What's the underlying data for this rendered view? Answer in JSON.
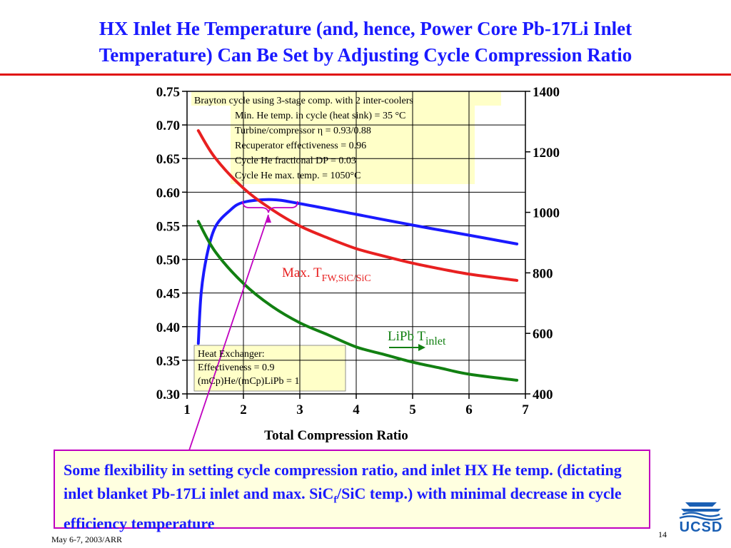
{
  "slide": {
    "title_line1": "HX Inlet He Temperature (and, hence, Power Core Pb-17Li Inlet",
    "title_line2": "Temperature) Can Be Set by Adjusting Cycle Compression Ratio",
    "callout_part1": "Some flexibility in setting cycle compression ratio, and inlet HX He temp. (dictating inlet blanket Pb-17Li inlet and max. SiC",
    "callout_sub": "f",
    "callout_part2": "/SiC temp.) with minimal decrease in cycle efficiency temperature",
    "footer_date": "May 6-7, 2003/ARR",
    "page_number": "14",
    "logo_text": "UCSD"
  },
  "colors": {
    "title": "#1a1aff",
    "rule": "#e01010",
    "efficiency": "#1a1aff",
    "max_temp": "#e82020",
    "inlet_temp": "#128012",
    "annotation_box": "#ffffc8",
    "callout_border": "#c000c0",
    "callout_fill": "#ffffe0",
    "pointer": "#c000c0"
  },
  "chart_data": {
    "type": "line",
    "xlabel": "Total Compression Ratio",
    "xlim": [
      1,
      7
    ],
    "x_ticks": [
      1,
      2,
      3,
      4,
      5,
      6,
      7
    ],
    "y_left_lim": [
      0.3,
      0.75
    ],
    "y_left_ticks": [
      "0.30",
      "0.35",
      "0.40",
      "0.45",
      "0.50",
      "0.55",
      "0.60",
      "0.65",
      "0.70",
      "0.75"
    ],
    "y_right_lim": [
      400,
      1400
    ],
    "y_right_ticks": [
      "400",
      "600",
      "800",
      "1000",
      "1200",
      "1400"
    ],
    "grid": true,
    "series": [
      {
        "axis": "left",
        "color": "#1a1aff",
        "x": [
          1.2,
          1.25,
          1.35,
          1.5,
          1.75,
          2.0,
          2.5,
          3.0,
          4.0,
          5.0,
          6.0,
          6.85
        ],
        "y": [
          0.375,
          0.45,
          0.505,
          0.548,
          0.572,
          0.585,
          0.589,
          0.583,
          0.567,
          0.551,
          0.536,
          0.523
        ]
      },
      {
        "axis": "right",
        "name": "Max. T",
        "name_sub": "FW,SiC/SiC",
        "color": "#e82020",
        "x": [
          1.2,
          1.5,
          2.0,
          2.5,
          3.0,
          3.5,
          4.0,
          4.5,
          5.0,
          5.5,
          6.0,
          6.85
        ],
        "y": [
          1270,
          1180,
          1080,
          1010,
          955,
          915,
          880,
          855,
          832,
          813,
          796,
          775
        ]
      },
      {
        "axis": "right",
        "name": "LiPb T",
        "name_sub": "inlet",
        "color": "#128012",
        "x": [
          1.2,
          1.5,
          2.0,
          2.5,
          3.0,
          3.5,
          4.0,
          4.5,
          5.0,
          5.5,
          6.0,
          6.85
        ],
        "y": [
          970,
          870,
          765,
          690,
          635,
          595,
          555,
          530,
          505,
          485,
          465,
          445
        ]
      }
    ],
    "annotations": [
      {
        "lines": [
          "Brayton cycle using 3-stage comp. with 2 inter-coolers",
          "Min. He temp. in cycle (heat sink) = 35 °C",
          "Turbine/compressor  η = 0.93/0.88",
          "Recuperator effectiveness = 0.96",
          "Cycle He fractional DP  = 0.03",
          "Cycle He max. temp. = 1050°C"
        ]
      },
      {
        "lines": [
          "Heat Exchanger:",
          "Effectiveness = 0.9",
          "(mCp)He/(mCp)LiPb = 1"
        ]
      }
    ]
  }
}
